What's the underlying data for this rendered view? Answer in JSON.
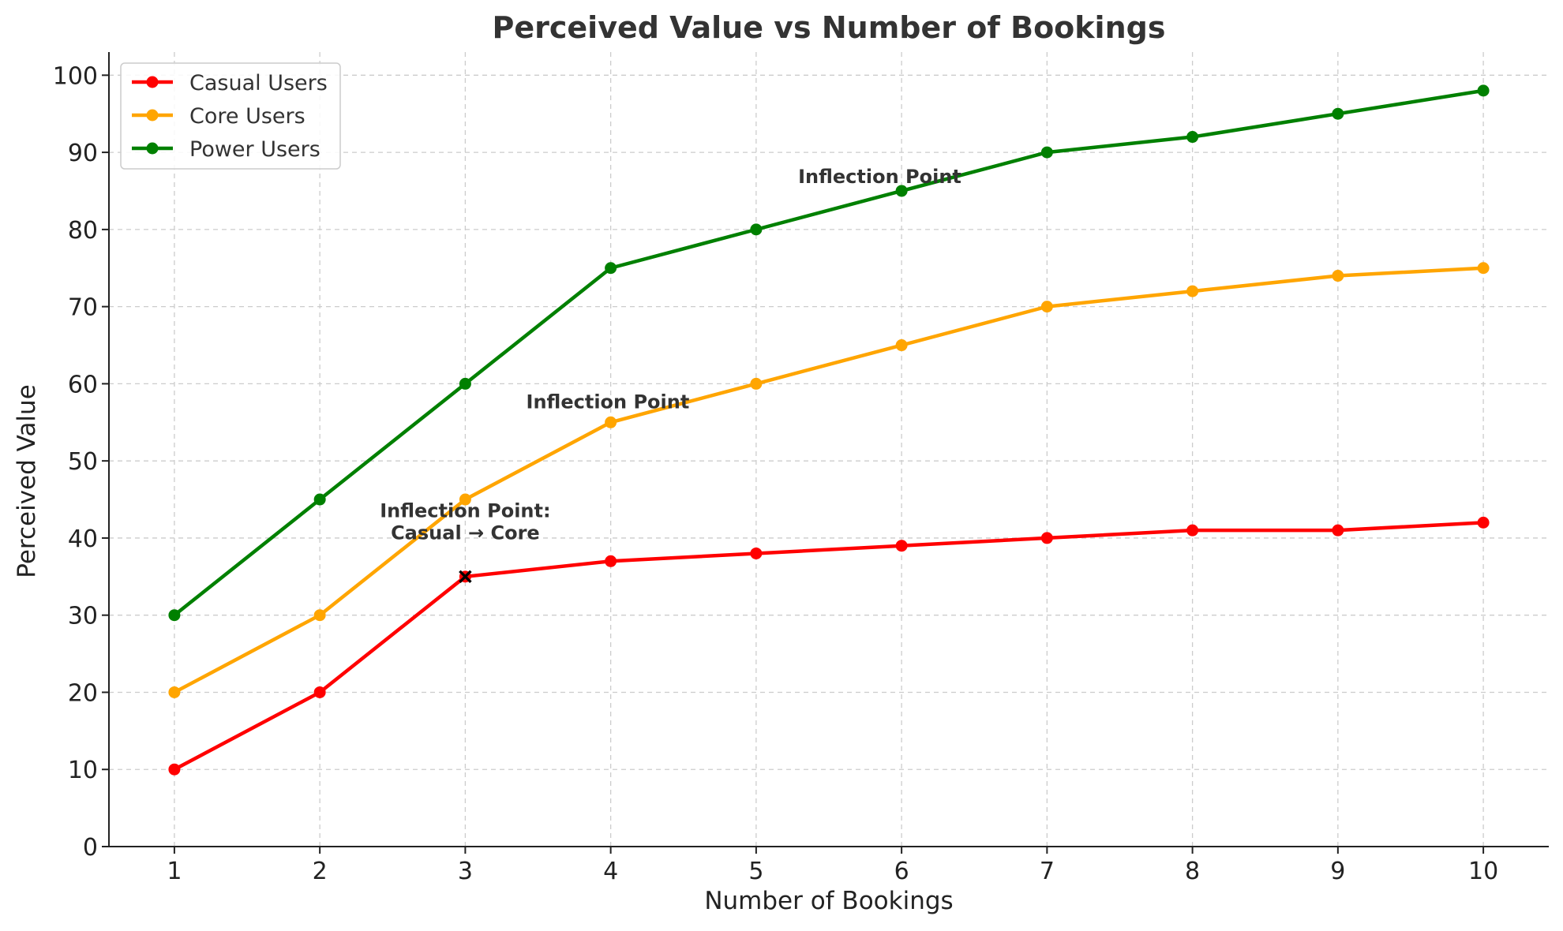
{
  "chart_data": {
    "type": "line",
    "title": "Perceived Value vs Number of Bookings",
    "xlabel": "Number of Bookings",
    "ylabel": "Perceived Value",
    "x": [
      1,
      2,
      3,
      4,
      5,
      6,
      7,
      8,
      9,
      10
    ],
    "xlim": [
      0.55,
      10.45
    ],
    "ylim": [
      0,
      103
    ],
    "yticks": [
      0,
      10,
      20,
      30,
      40,
      50,
      60,
      70,
      80,
      90,
      100
    ],
    "grid": true,
    "legend_position": "top-left",
    "series": [
      {
        "name": "Casual Users",
        "color": "#ff0000",
        "values": [
          10,
          20,
          35,
          37,
          38,
          39,
          40,
          41,
          41,
          42
        ]
      },
      {
        "name": "Core Users",
        "color": "#ffa500",
        "values": [
          20,
          30,
          45,
          55,
          60,
          65,
          70,
          72,
          74,
          75
        ]
      },
      {
        "name": "Power Users",
        "color": "#008000",
        "values": [
          30,
          45,
          60,
          75,
          80,
          85,
          90,
          92,
          95,
          98
        ]
      }
    ],
    "annotations": [
      {
        "lines": [
          "Inflection Point"
        ],
        "x": 5.85,
        "y": 86
      },
      {
        "lines": [
          "Inflection Point"
        ],
        "x": 3.98,
        "y": 56.8
      },
      {
        "lines": [
          "Inflection Point:",
          "Casual → Core"
        ],
        "x": 3.0,
        "y": 42.7
      }
    ],
    "marker": {
      "x": 3,
      "y": 35,
      "symbol": "x",
      "color": "#000000"
    }
  }
}
